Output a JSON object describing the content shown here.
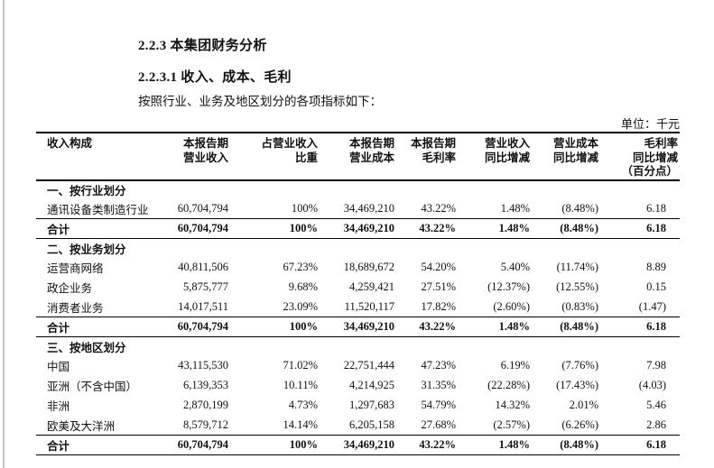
{
  "page": {
    "background": "#ffffff",
    "edge_line_color": "#c6c6c6"
  },
  "document": {
    "heading1": "2.2.3 本集团财务分析",
    "heading2": "2.2.3.1 收入、成本、毛利",
    "intro": "按照行业、业务及地区划分的各项指标如下：",
    "unit_label": "单位：千元"
  },
  "table": {
    "columns": [
      {
        "lines": [
          "收入构成"
        ]
      },
      {
        "lines": [
          "本报告期",
          "营业收入"
        ]
      },
      {
        "lines": [
          "占营业收入",
          "比重"
        ]
      },
      {
        "lines": [
          "本报告期",
          "营业成本"
        ]
      },
      {
        "lines": [
          "本报告期",
          "毛利率"
        ]
      },
      {
        "lines": [
          "营业收入",
          "同比增减"
        ]
      },
      {
        "lines": [
          "营业成本",
          "同比增减"
        ]
      },
      {
        "lines": [
          "毛利率",
          "同比增减",
          "（百分点）"
        ]
      }
    ],
    "sections": [
      {
        "title": "一、按行业划分",
        "rows": [
          {
            "label": "通讯设备类制造行业",
            "total": false,
            "values": [
              "60,704,794",
              "100%",
              "34,469,210",
              "43.22%",
              "1.48%",
              "(8.48%)",
              "6.18"
            ]
          },
          {
            "label": "合计",
            "total": true,
            "values": [
              "60,704,794",
              "100%",
              "34,469,210",
              "43.22%",
              "1.48%",
              "(8.48%)",
              "6.18"
            ]
          }
        ]
      },
      {
        "title": "二、按业务划分",
        "rows": [
          {
            "label": "运营商网络",
            "total": false,
            "values": [
              "40,811,506",
              "67.23%",
              "18,689,672",
              "54.20%",
              "5.40%",
              "(11.74%)",
              "8.89"
            ]
          },
          {
            "label": "政企业务",
            "total": false,
            "values": [
              "5,875,777",
              "9.68%",
              "4,259,421",
              "27.51%",
              "(12.37%)",
              "(12.55%)",
              "0.15"
            ]
          },
          {
            "label": "消费者业务",
            "total": false,
            "values": [
              "14,017,511",
              "23.09%",
              "11,520,117",
              "17.82%",
              "(2.60%)",
              "(0.83%)",
              "(1.47)"
            ]
          },
          {
            "label": "合计",
            "total": true,
            "values": [
              "60,704,794",
              "100%",
              "34,469,210",
              "43.22%",
              "1.48%",
              "(8.48%)",
              "6.18"
            ]
          }
        ]
      },
      {
        "title": "三、按地区划分",
        "rows": [
          {
            "label": "中国",
            "total": false,
            "values": [
              "43,115,530",
              "71.02%",
              "22,751,444",
              "47.23%",
              "6.19%",
              "(7.76%)",
              "7.98"
            ]
          },
          {
            "label": "亚洲（不含中国）",
            "total": false,
            "values": [
              "6,139,353",
              "10.11%",
              "4,214,925",
              "31.35%",
              "(22.28%)",
              "(17.43%)",
              "(4.03)"
            ]
          },
          {
            "label": "非洲",
            "total": false,
            "values": [
              "2,870,199",
              "4.73%",
              "1,297,683",
              "54.79%",
              "14.32%",
              "2.01%",
              "5.46"
            ]
          },
          {
            "label": "欧美及大洋洲",
            "total": false,
            "values": [
              "8,579,712",
              "14.14%",
              "6,205,158",
              "27.68%",
              "(2.57%)",
              "(6.26%)",
              "2.86"
            ]
          },
          {
            "label": "合计",
            "total": true,
            "values": [
              "60,704,794",
              "100%",
              "34,469,210",
              "43.22%",
              "1.48%",
              "(8.48%)",
              "6.18"
            ]
          }
        ]
      }
    ]
  }
}
